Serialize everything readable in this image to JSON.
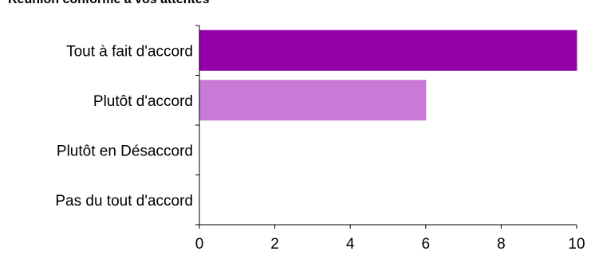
{
  "chart_data": {
    "type": "bar",
    "orientation": "horizontal",
    "title": "Réunion conforme à vos attentes",
    "categories": [
      "Tout à fait d'accord",
      "Plutôt d'accord",
      "Plutôt en Désaccord",
      "Pas du tout d'accord"
    ],
    "values": [
      10,
      6,
      0,
      0
    ],
    "colors": [
      "#9400a8",
      "#c87ad6",
      "#9400a8",
      "#9400a8"
    ],
    "xlim": [
      0,
      10
    ],
    "xticks": [
      "0",
      "2",
      "4",
      "6",
      "8",
      "10"
    ],
    "xlabel": "",
    "ylabel": "",
    "grid": false
  }
}
